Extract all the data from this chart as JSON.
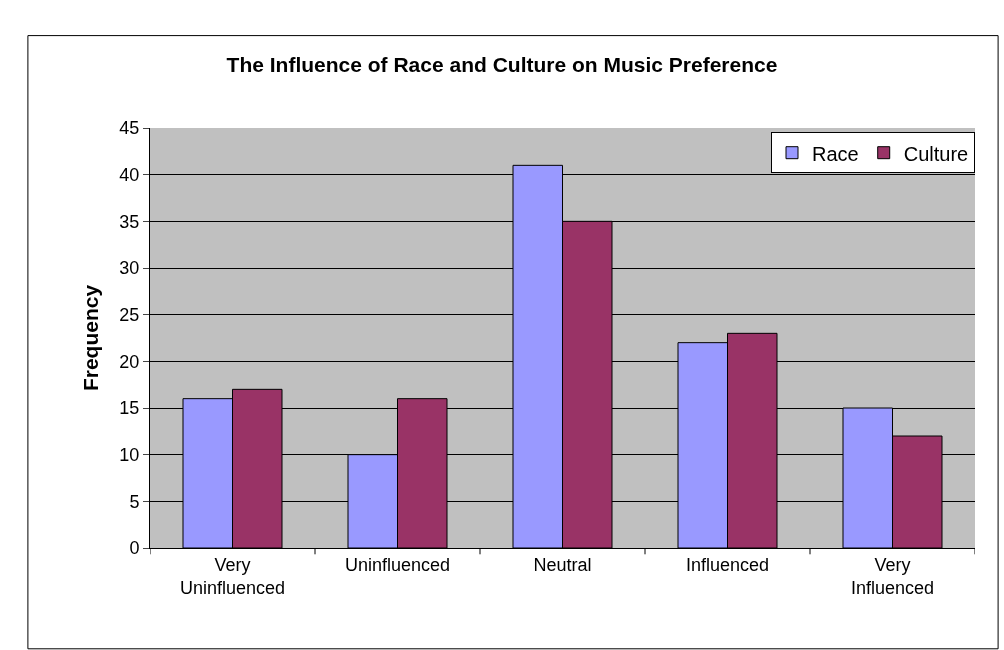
{
  "chart_data": {
    "type": "bar",
    "title": "The Influence of Race and Culture on Music Preference",
    "ylabel": "Frequency",
    "categories": [
      "Very Uninfluenced",
      "Uninfluenced",
      "Neutral",
      "Influenced",
      "Very Influenced"
    ],
    "series": [
      {
        "name": "Race",
        "color": "#9999ff",
        "values": [
          16,
          10,
          41,
          22,
          15
        ]
      },
      {
        "name": "Culture",
        "color": "#993366",
        "values": [
          17,
          16,
          35,
          23,
          12
        ]
      }
    ],
    "ylim": [
      0,
      45
    ],
    "yticks": [
      0,
      5,
      10,
      15,
      20,
      25,
      30,
      35,
      40,
      45
    ],
    "grid": "y",
    "legend": "top right"
  }
}
